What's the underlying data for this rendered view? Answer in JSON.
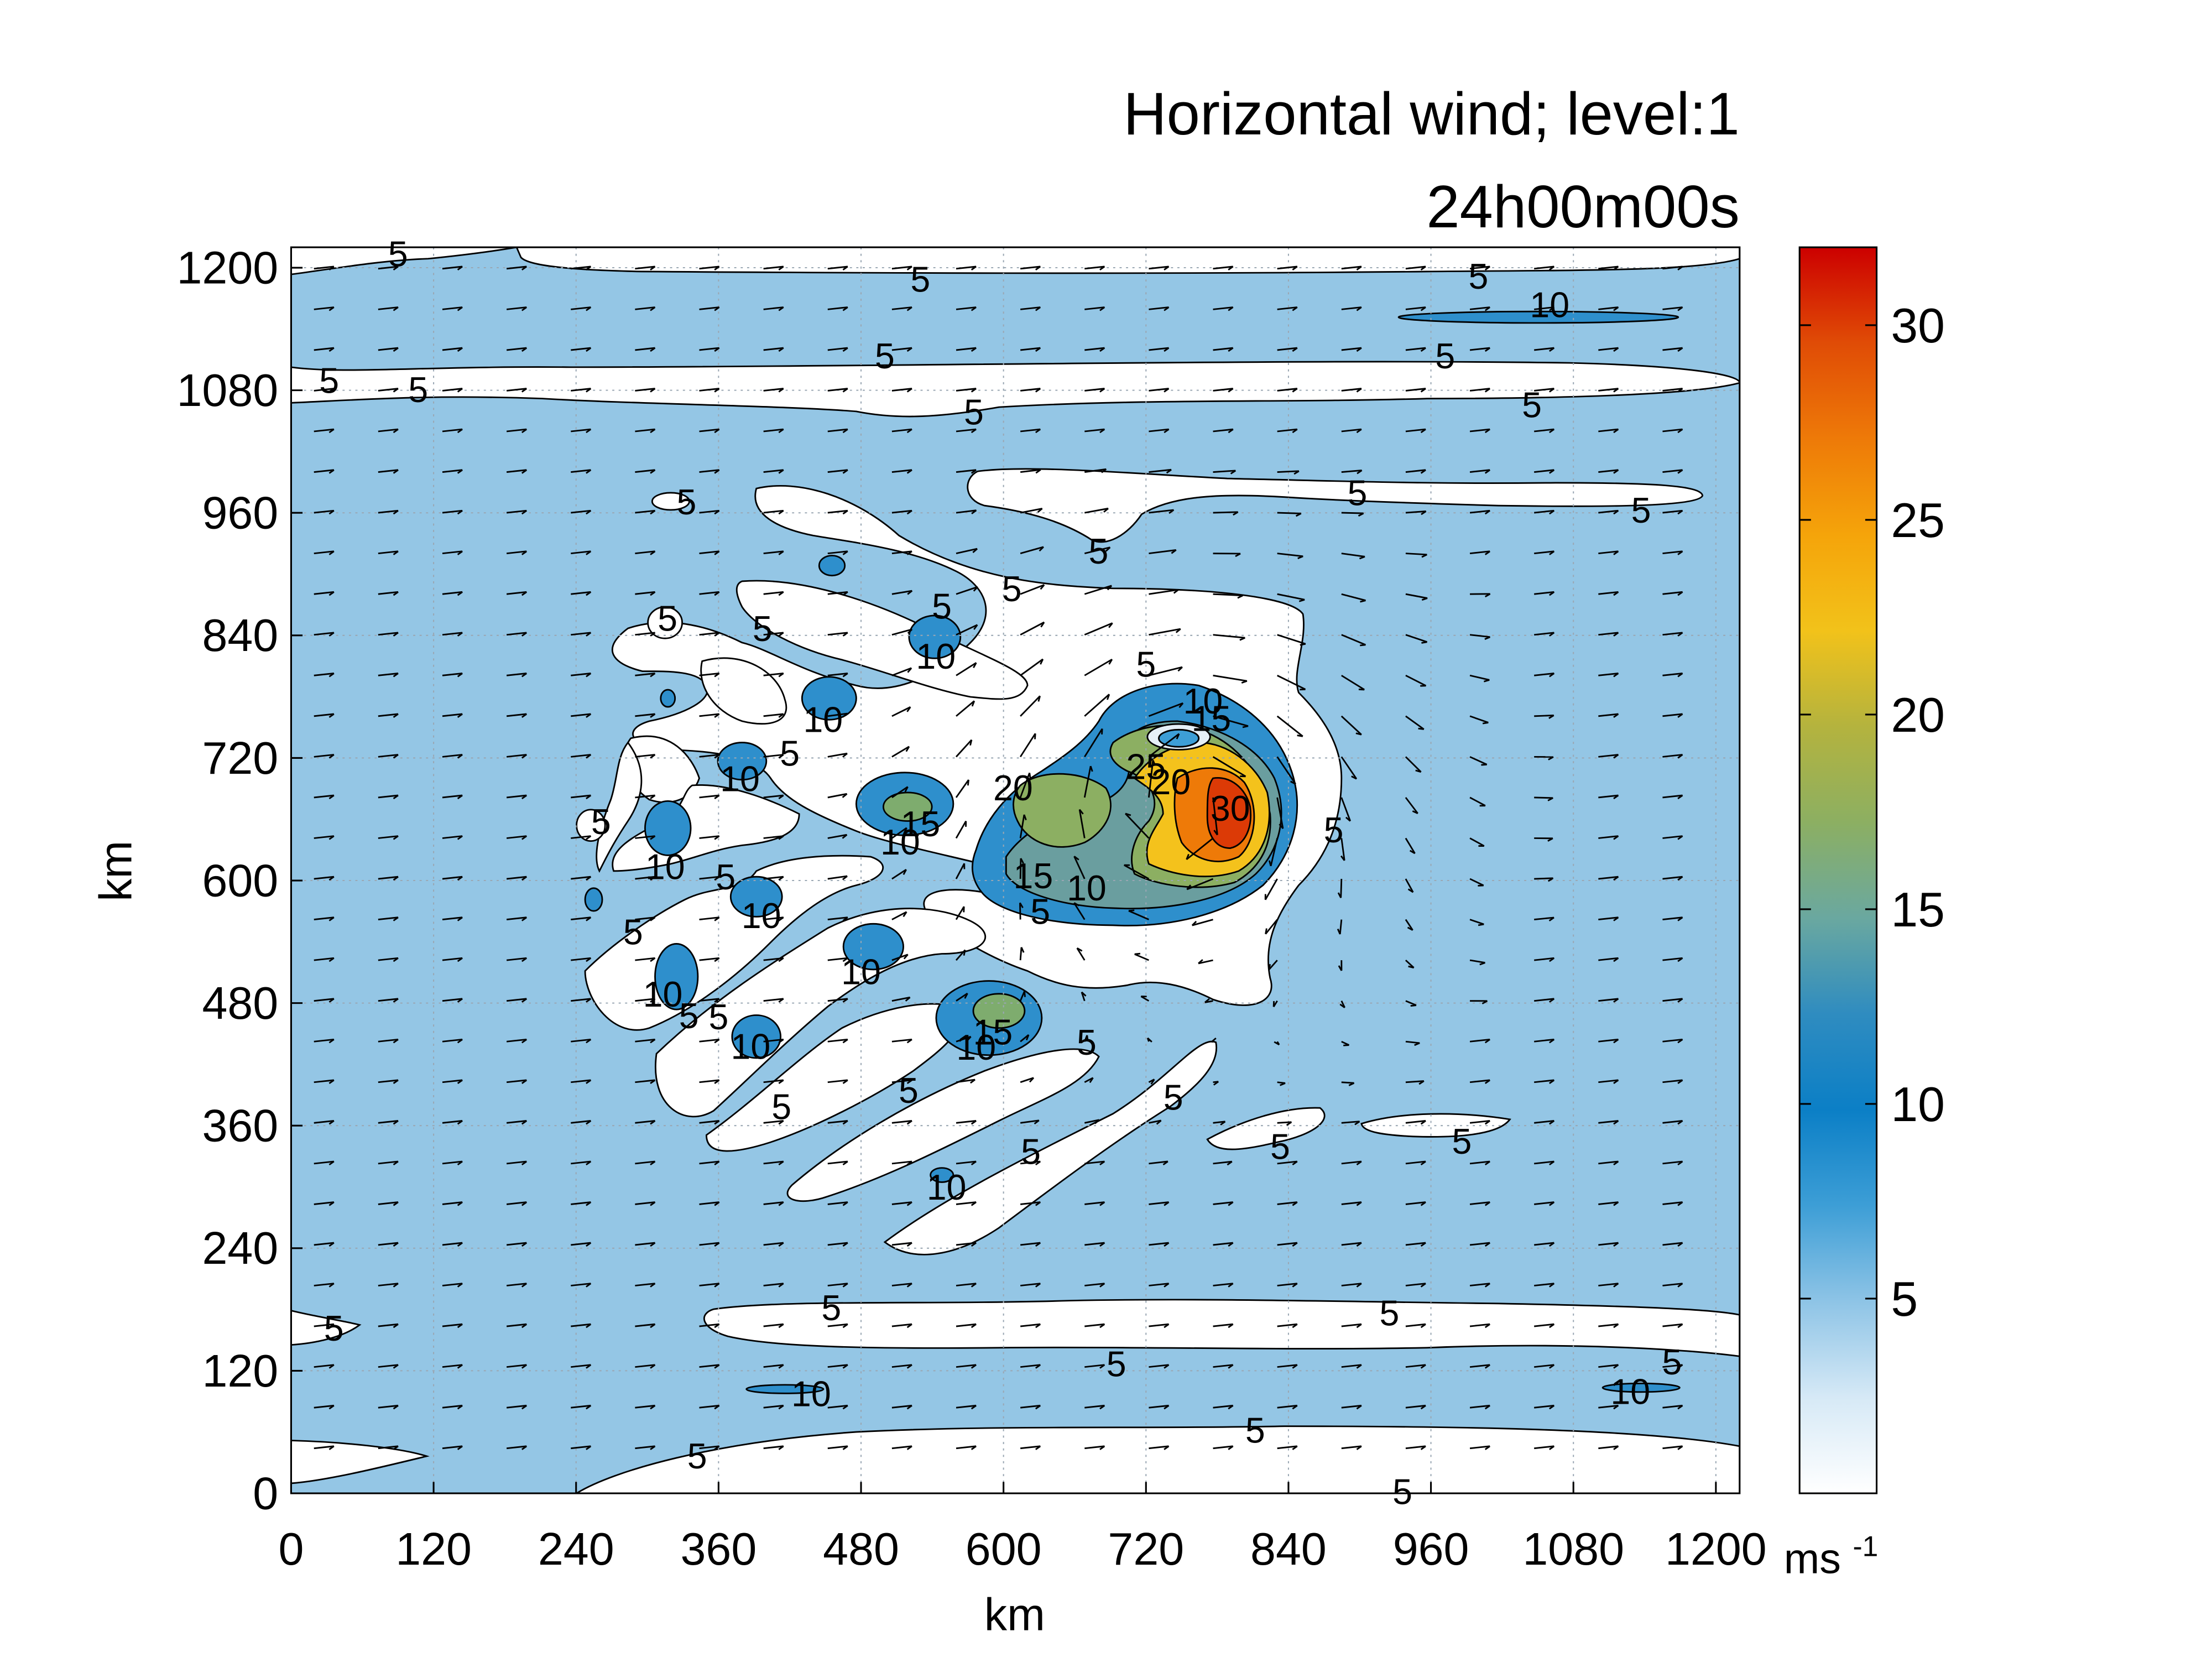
{
  "chart_data": {
    "type": "contour",
    "title_line1": "Horizontal wind; level:1",
    "title_line2": "24h00m00s",
    "xlabel": "km",
    "ylabel": "km",
    "xlim": [
      0,
      1220
    ],
    "ylim": [
      0,
      1220
    ],
    "xticks": [
      0,
      120,
      240,
      360,
      480,
      600,
      720,
      840,
      960,
      1080,
      1200
    ],
    "yticks": [
      0,
      120,
      240,
      360,
      480,
      600,
      720,
      840,
      960,
      1080,
      1200
    ],
    "grid": "dotted",
    "colorbar": {
      "unit_base": "ms",
      "unit_exp": "-1",
      "range": [
        0,
        32
      ],
      "ticks": [
        5,
        10,
        15,
        20,
        25,
        30
      ],
      "colors": [
        "#ffffff",
        "#d6e9f6",
        "#8ec4e6",
        "#3d9ed6",
        "#0b7fc6",
        "#2f8cc0",
        "#6aa8a0",
        "#8caf62",
        "#b4b33e",
        "#f2c21a",
        "#f5a40a",
        "#ee7a08",
        "#e04c06",
        "#cc0000"
      ]
    },
    "contour_labels": [
      {
        "value": "5",
        "x": 90,
        "y": 1214
      },
      {
        "value": "5",
        "x": 530,
        "y": 1189
      },
      {
        "value": "5",
        "x": 1000,
        "y": 1192
      },
      {
        "value": "10",
        "x": 1060,
        "y": 1164
      },
      {
        "value": "5",
        "x": 32,
        "y": 1090
      },
      {
        "value": "5",
        "x": 107,
        "y": 1081
      },
      {
        "value": "5",
        "x": 500,
        "y": 1114
      },
      {
        "value": "5",
        "x": 972,
        "y": 1114
      },
      {
        "value": "5",
        "x": 575,
        "y": 1059
      },
      {
        "value": "5",
        "x": 1045,
        "y": 1066
      },
      {
        "value": "5",
        "x": 333,
        "y": 971
      },
      {
        "value": "5",
        "x": 898,
        "y": 980
      },
      {
        "value": "5",
        "x": 1137,
        "y": 963
      },
      {
        "value": "5",
        "x": 680,
        "y": 923
      },
      {
        "value": "5",
        "x": 607,
        "y": 886
      },
      {
        "value": "5",
        "x": 317,
        "y": 857
      },
      {
        "value": "5",
        "x": 397,
        "y": 847
      },
      {
        "value": "5",
        "x": 548,
        "y": 869
      },
      {
        "value": "10",
        "x": 543,
        "y": 820
      },
      {
        "value": "5",
        "x": 720,
        "y": 812
      },
      {
        "value": "10",
        "x": 448,
        "y": 758
      },
      {
        "value": "10",
        "x": 768,
        "y": 776
      },
      {
        "value": "15",
        "x": 775,
        "y": 759
      },
      {
        "value": "5",
        "x": 420,
        "y": 725
      },
      {
        "value": "10",
        "x": 378,
        "y": 700
      },
      {
        "value": "20",
        "x": 608,
        "y": 691
      },
      {
        "value": "25",
        "x": 720,
        "y": 712
      },
      {
        "value": "20",
        "x": 741,
        "y": 697
      },
      {
        "value": "30",
        "x": 791,
        "y": 671
      },
      {
        "value": "5",
        "x": 261,
        "y": 658
      },
      {
        "value": "10",
        "x": 315,
        "y": 614
      },
      {
        "value": "15",
        "x": 530,
        "y": 656
      },
      {
        "value": "10",
        "x": 513,
        "y": 638
      },
      {
        "value": "5",
        "x": 878,
        "y": 650
      },
      {
        "value": "5",
        "x": 366,
        "y": 604
      },
      {
        "value": "15",
        "x": 625,
        "y": 605
      },
      {
        "value": "10",
        "x": 670,
        "y": 593
      },
      {
        "value": "10",
        "x": 396,
        "y": 566
      },
      {
        "value": "5",
        "x": 288,
        "y": 550
      },
      {
        "value": "5",
        "x": 631,
        "y": 570
      },
      {
        "value": "10",
        "x": 480,
        "y": 511
      },
      {
        "value": "10",
        "x": 313,
        "y": 489
      },
      {
        "value": "5",
        "x": 335,
        "y": 468
      },
      {
        "value": "5",
        "x": 360,
        "y": 467
      },
      {
        "value": "10",
        "x": 387,
        "y": 438
      },
      {
        "value": "15",
        "x": 591,
        "y": 452
      },
      {
        "value": "10",
        "x": 577,
        "y": 437
      },
      {
        "value": "5",
        "x": 670,
        "y": 442
      },
      {
        "value": "5",
        "x": 520,
        "y": 395
      },
      {
        "value": "5",
        "x": 413,
        "y": 379
      },
      {
        "value": "5",
        "x": 743,
        "y": 388
      },
      {
        "value": "5",
        "x": 833,
        "y": 340
      },
      {
        "value": "5",
        "x": 986,
        "y": 345
      },
      {
        "value": "10",
        "x": 552,
        "y": 300
      },
      {
        "value": "5",
        "x": 623,
        "y": 335
      },
      {
        "value": "5",
        "x": 455,
        "y": 182
      },
      {
        "value": "5",
        "x": 925,
        "y": 177
      },
      {
        "value": "5",
        "x": 36,
        "y": 162
      },
      {
        "value": "5",
        "x": 695,
        "y": 127
      },
      {
        "value": "5",
        "x": 1163,
        "y": 129
      },
      {
        "value": "10",
        "x": 438,
        "y": 98
      },
      {
        "value": "10",
        "x": 1128,
        "y": 100
      },
      {
        "value": "5",
        "x": 812,
        "y": 62
      },
      {
        "value": "5",
        "x": 342,
        "y": 37
      },
      {
        "value": "5",
        "x": 936,
        "y": 2
      }
    ]
  }
}
